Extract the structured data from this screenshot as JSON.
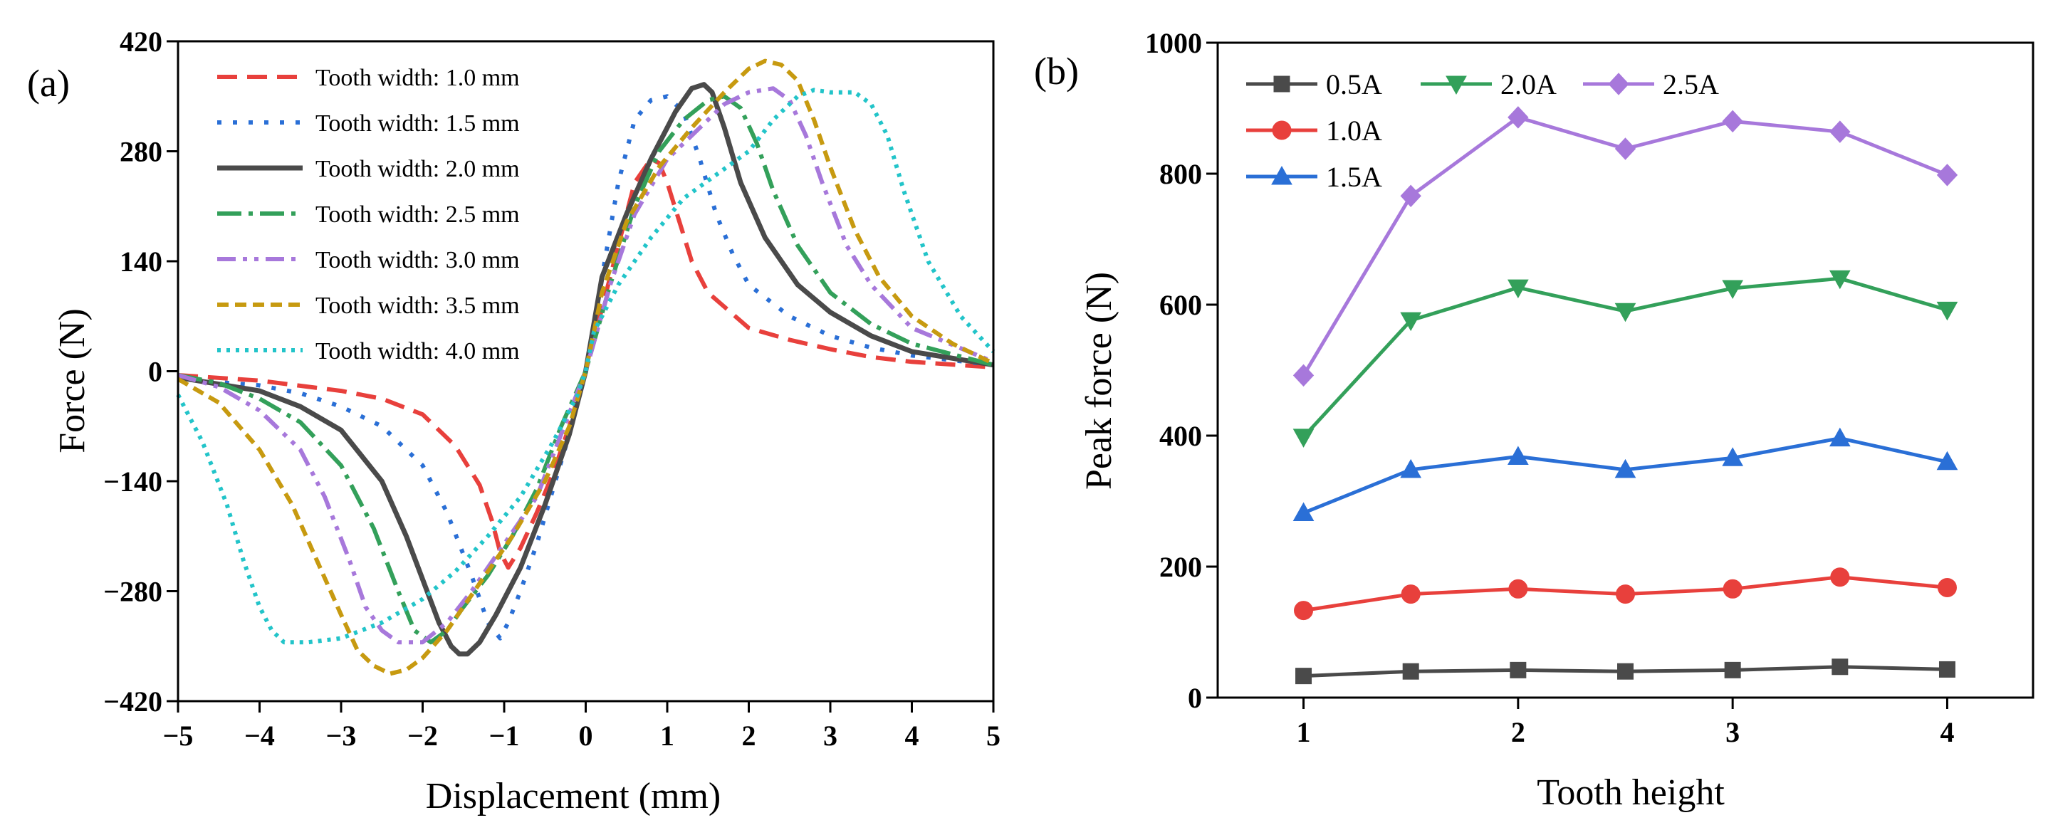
{
  "chart_data": [
    {
      "panel_label": "(a)",
      "type": "line",
      "title": "",
      "xlabel": "Displacement (mm)",
      "ylabel": "Force (N)",
      "xlim": [
        -5,
        5
      ],
      "ylim": [
        -420,
        420
      ],
      "xticks": [
        -5,
        -4,
        -3,
        -2,
        -1,
        0,
        1,
        2,
        3,
        4,
        5
      ],
      "yticks": [
        -420,
        -280,
        -140,
        0,
        140,
        280,
        420
      ],
      "xtick_labels": [
        "−5",
        "−4",
        "−3",
        "−2",
        "−1",
        "0",
        "1",
        "2",
        "3",
        "4",
        "5"
      ],
      "ytick_labels": [
        "−420",
        "−280",
        "−140",
        "0",
        "140",
        "280",
        "420"
      ],
      "grid": false,
      "legend_position": "top-left",
      "series": [
        {
          "name": "Tooth width: 1.0 mm",
          "color": "#e8403c",
          "dash": "28,14",
          "width": 6,
          "x": [
            -5,
            -4,
            -3,
            -2.5,
            -2,
            -1.6,
            -1.3,
            -1.15,
            -1.05,
            -0.95,
            -0.8,
            -0.6,
            -0.4,
            -0.2,
            0,
            0.2,
            0.4,
            0.6,
            0.8,
            0.9,
            1.0,
            1.15,
            1.3,
            1.5,
            2,
            2.5,
            3,
            3.5,
            4,
            5
          ],
          "y": [
            -5,
            -12,
            -25,
            -35,
            -55,
            -95,
            -145,
            -190,
            -230,
            -250,
            -225,
            -180,
            -130,
            -70,
            0,
            80,
            160,
            240,
            270,
            265,
            240,
            190,
            140,
            100,
            55,
            40,
            28,
            18,
            12,
            5
          ]
        },
        {
          "name": "Tooth width: 1.5 mm",
          "color": "#2a6fd6",
          "dash": "6,16",
          "width": 6,
          "x": [
            -5,
            -4,
            -3.5,
            -3,
            -2.5,
            -2,
            -1.7,
            -1.4,
            -1.2,
            -1.05,
            -0.95,
            -0.8,
            -0.6,
            -0.4,
            -0.2,
            0,
            0.2,
            0.4,
            0.6,
            0.8,
            1.0,
            1.2,
            1.4,
            1.6,
            1.8,
            2,
            2.5,
            3,
            3.5,
            4,
            5
          ],
          "y": [
            -10,
            -18,
            -28,
            -45,
            -70,
            -120,
            -180,
            -260,
            -320,
            -340,
            -320,
            -280,
            -220,
            -150,
            -80,
            0,
            120,
            240,
            320,
            345,
            350,
            330,
            270,
            200,
            150,
            110,
            70,
            45,
            30,
            20,
            8
          ]
        },
        {
          "name": "Tooth width: 2.0 mm",
          "color": "#4a4a4a",
          "dash": "",
          "width": 7,
          "x": [
            -5,
            -4,
            -3.5,
            -3,
            -2.5,
            -2.2,
            -2,
            -1.8,
            -1.65,
            -1.55,
            -1.45,
            -1.3,
            -1.1,
            -0.8,
            -0.5,
            -0.2,
            0,
            0.2,
            0.5,
            0.8,
            1.1,
            1.3,
            1.45,
            1.55,
            1.7,
            1.9,
            2.2,
            2.6,
            3,
            3.5,
            4,
            5
          ],
          "y": [
            -8,
            -25,
            -45,
            -75,
            -140,
            -210,
            -265,
            -320,
            -350,
            -360,
            -360,
            -345,
            -310,
            -250,
            -170,
            -80,
            0,
            120,
            200,
            270,
            330,
            360,
            365,
            355,
            310,
            240,
            170,
            110,
            75,
            45,
            25,
            8
          ]
        },
        {
          "name": "Tooth width: 2.5 mm",
          "color": "#33a05a",
          "dash": "34,10,6,10",
          "width": 6,
          "x": [
            -5,
            -4.5,
            -4,
            -3.5,
            -3,
            -2.6,
            -2.3,
            -2.1,
            -1.9,
            -1.7,
            -1.5,
            -1.2,
            -0.9,
            -0.6,
            -0.3,
            0,
            0.3,
            0.6,
            0.9,
            1.2,
            1.5,
            1.7,
            1.9,
            2.1,
            2.3,
            2.6,
            3,
            3.5,
            4,
            5
          ],
          "y": [
            -5,
            -15,
            -35,
            -65,
            -120,
            -200,
            -280,
            -330,
            -345,
            -330,
            -300,
            -260,
            -210,
            -150,
            -70,
            0,
            110,
            210,
            280,
            320,
            345,
            350,
            335,
            290,
            230,
            160,
            100,
            60,
            35,
            8
          ]
        },
        {
          "name": "Tooth width: 3.0 mm",
          "color": "#a778db",
          "dash": "26,10,6,10,6,10",
          "width": 6,
          "x": [
            -5,
            -4.5,
            -4,
            -3.5,
            -3.2,
            -2.9,
            -2.7,
            -2.5,
            -2.3,
            -2.0,
            -1.7,
            -1.4,
            -1.0,
            -0.6,
            -0.3,
            0,
            0.3,
            0.6,
            1.0,
            1.4,
            1.7,
            2.0,
            2.3,
            2.5,
            2.7,
            2.9,
            3.2,
            3.5,
            4,
            5
          ],
          "y": [
            -5,
            -20,
            -50,
            -100,
            -160,
            -240,
            -300,
            -330,
            -345,
            -345,
            -320,
            -280,
            -220,
            -160,
            -80,
            0,
            110,
            200,
            270,
            310,
            340,
            355,
            360,
            345,
            300,
            240,
            160,
            110,
            55,
            12
          ]
        },
        {
          "name": "Tooth width: 3.5 mm",
          "color": "#c79a10",
          "dash": "16,9",
          "width": 6,
          "x": [
            -5,
            -4.5,
            -4,
            -3.6,
            -3.3,
            -3.0,
            -2.8,
            -2.6,
            -2.4,
            -2.2,
            -2.0,
            -1.7,
            -1.3,
            -0.9,
            -0.5,
            -0.2,
            0,
            0.2,
            0.5,
            0.9,
            1.3,
            1.7,
            2.0,
            2.2,
            2.4,
            2.6,
            2.8,
            3.0,
            3.3,
            3.6,
            4,
            4.5,
            5
          ],
          "y": [
            -10,
            -40,
            -100,
            -170,
            -240,
            -310,
            -355,
            -375,
            -385,
            -380,
            -365,
            -330,
            -270,
            -210,
            -140,
            -70,
            0,
            100,
            190,
            260,
            310,
            355,
            385,
            395,
            390,
            370,
            320,
            260,
            180,
            120,
            70,
            35,
            10
          ]
        },
        {
          "name": "Tooth width: 4.0 mm",
          "color": "#22c4c9",
          "dash": "5,8",
          "width": 6,
          "x": [
            -5,
            -4.7,
            -4.4,
            -4.2,
            -4.0,
            -3.85,
            -3.7,
            -3.4,
            -3.0,
            -2.5,
            -2.0,
            -1.6,
            -1.2,
            -0.8,
            -0.4,
            -0.1,
            0,
            0.1,
            0.4,
            0.8,
            1.2,
            1.6,
            2.0,
            2.3,
            2.6,
            2.8,
            3.0,
            3.3,
            3.5,
            3.7,
            3.9,
            4.2,
            4.6,
            5
          ],
          "y": [
            -30,
            -90,
            -170,
            -240,
            -300,
            -330,
            -345,
            -345,
            -340,
            -320,
            -290,
            -255,
            -210,
            -160,
            -90,
            -30,
            0,
            50,
            110,
            170,
            220,
            250,
            280,
            320,
            350,
            358,
            355,
            355,
            340,
            300,
            230,
            140,
            70,
            25
          ]
        }
      ]
    },
    {
      "panel_label": "(b)",
      "type": "line",
      "title": "",
      "xlabel": "Tooth height",
      "ylabel": "Peak force (N)",
      "xlim": [
        0.6,
        4.4
      ],
      "ylim": [
        0,
        1000
      ],
      "xticks": [
        1,
        2,
        3,
        4
      ],
      "yticks": [
        0,
        200,
        400,
        600,
        800,
        1000
      ],
      "xtick_labels": [
        "1",
        "2",
        "3",
        "4"
      ],
      "ytick_labels": [
        "0",
        "200",
        "400",
        "600",
        "800",
        "1000"
      ],
      "grid": false,
      "legend_position": "top-left",
      "categories": [
        1,
        1.5,
        2,
        2.5,
        3,
        3.5,
        4
      ],
      "series": [
        {
          "name": "0.5A",
          "color": "#4a4a4a",
          "marker": "square",
          "values": [
            33,
            40,
            42,
            40,
            42,
            47,
            43
          ]
        },
        {
          "name": "1.0A",
          "color": "#e8403c",
          "marker": "circle",
          "values": [
            133,
            158,
            166,
            158,
            166,
            184,
            168
          ]
        },
        {
          "name": "1.5A",
          "color": "#2a6fd6",
          "marker": "triangle-up",
          "values": [
            282,
            348,
            368,
            348,
            366,
            396,
            360
          ]
        },
        {
          "name": "2.0A",
          "color": "#33a05a",
          "marker": "triangle-down",
          "values": [
            398,
            576,
            626,
            590,
            625,
            640,
            592
          ]
        },
        {
          "name": "2.5A",
          "color": "#a778db",
          "marker": "diamond",
          "values": [
            492,
            766,
            886,
            838,
            880,
            864,
            798
          ]
        }
      ]
    }
  ]
}
